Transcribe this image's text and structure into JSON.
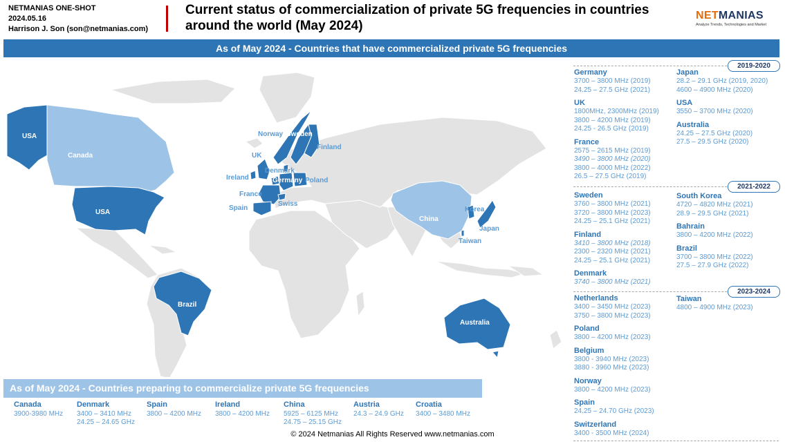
{
  "header": {
    "line1": "NETMANIAS ONE-SHOT",
    "line2": "2024.05.16",
    "line3": "Harrison J. Son (son@netmanias.com)",
    "title": "Current status of commercialization of private 5G frequencies in countries around the world (May 2024)",
    "logo_part1": "NET",
    "logo_part2": "MANIAS",
    "logo_tagline": "Analyze Trends, Technologies and Market",
    "accent_color": "#c00000",
    "logo_color": "#e46c0a"
  },
  "banner_text": "As of May 2024 - Countries that have commercialized private 5G frequencies",
  "colors": {
    "commercialized": "#2e75b6",
    "preparing": "#9dc3e6",
    "land": "#e3e3e3"
  },
  "map_labels": [
    "USA",
    "Canada",
    "USA",
    "Norway",
    "Sweden",
    "Finland",
    "UK",
    "Denmark",
    "Ireland",
    "Germany",
    "Poland",
    "France",
    "Swiss",
    "Spain",
    "China",
    "Korea",
    "Japan",
    "Taiwan",
    "Brazil",
    "Australia"
  ],
  "preparing": {
    "banner": "As of May 2024 - Countries preparing to commercialize private 5G frequencies",
    "countries": [
      {
        "name": "Canada",
        "freqs": [
          "3900-3980 MHz"
        ]
      },
      {
        "name": "Denmark",
        "freqs": [
          "3400 – 3410 MHz",
          "24.25 – 24.65 GHz"
        ]
      },
      {
        "name": "Spain",
        "freqs": [
          "3800 – 4200 MHz"
        ]
      },
      {
        "name": "Ireland",
        "freqs": [
          "3800 – 4200 MHz"
        ]
      },
      {
        "name": "China",
        "freqs": [
          "5925 – 6125 MHz",
          "24.75 – 25.15 GHz"
        ]
      },
      {
        "name": "Austria",
        "freqs": [
          "24.3 – 24.9 GHz"
        ]
      },
      {
        "name": "Croatia",
        "freqs": [
          "3400 – 3480 MHz"
        ]
      }
    ]
  },
  "periods": [
    "2019-2020",
    "2021-2022",
    "2023-2024"
  ],
  "right_left_col": [
    {
      "name": "Germany",
      "freqs": [
        {
          "t": "3700 – 3800 MHz (2019)"
        },
        {
          "t": "24.25 – 27.5 GHz (2021)"
        }
      ]
    },
    {
      "name": "UK",
      "freqs": [
        {
          "t": "1800MHz, 2300MHz (2019)"
        },
        {
          "t": "3800 – 4200 MHz (2019)"
        },
        {
          "t": "24.25 - 26.5 GHz (2019)"
        }
      ]
    },
    {
      "name": "France",
      "freqs": [
        {
          "t": "2575 – 2615 MHz (2019)"
        },
        {
          "t": "3490 – 3800 MHz (2020)",
          "i": true
        },
        {
          "t": "3800 – 4000 MHz (2022)"
        },
        {
          "t": "26.5 – 27.5 GHz (2019)"
        }
      ]
    },
    {
      "name": "Sweden",
      "freqs": [
        {
          "t": "3760 – 3800 MHz (2021)"
        },
        {
          "t": "3720 – 3800 MHz (2023)"
        },
        {
          "t": "24.25 – 25.1 GHz (2021)"
        }
      ]
    },
    {
      "name": "Finland",
      "freqs": [
        {
          "t": "3410 – 3800 MHz (2018)",
          "i": true
        },
        {
          "t": "2300 – 2320 MHz (2021)"
        },
        {
          "t": "24.25 – 25.1 GHz (2021)"
        }
      ]
    },
    {
      "name": "Denmark",
      "freqs": [
        {
          "t": "3740 – 3800 MHz (2021)",
          "i": true
        }
      ]
    },
    {
      "name": "Netherlands",
      "freqs": [
        {
          "t": "3400 – 3450 MHz (2023)"
        },
        {
          "t": "3750 – 3800 MHz (2023)"
        }
      ]
    },
    {
      "name": "Poland",
      "freqs": [
        {
          "t": "3800 – 4200 MHz (2023)"
        }
      ]
    },
    {
      "name": "Belgium",
      "freqs": [
        {
          "t": "3800 - 3940 MHz (2023)"
        },
        {
          "t": "3880 - 3960 MHz (2023)"
        }
      ]
    },
    {
      "name": "Norway",
      "freqs": [
        {
          "t": "3800 – 4200 MHz (2023)"
        }
      ]
    },
    {
      "name": "Spain",
      "freqs": [
        {
          "t": "24.25 – 24.70 GHz (2023)"
        }
      ]
    },
    {
      "name": "Switzerland",
      "freqs": [
        {
          "t": "3400 - 3500 MHz (2024)"
        }
      ]
    }
  ],
  "right_right_col": [
    {
      "name": "Japan",
      "freqs": [
        {
          "t": "28.2 – 29.1 GHz (2019, 2020)"
        },
        {
          "t": "4600 – 4900 MHz (2020)"
        }
      ]
    },
    {
      "name": "USA",
      "freqs": [
        {
          "t": "3550 – 3700 MHz (2020)"
        }
      ]
    },
    {
      "name": "Australia",
      "freqs": [
        {
          "t": "24.25 – 27.5 GHz (2020)"
        },
        {
          "t": "27.5 – 29.5 GHz (2020)"
        }
      ]
    },
    {
      "name": "South Korea",
      "freqs": [
        {
          "t": "4720 – 4820 MHz (2021)"
        },
        {
          "t": "28.9 – 29.5 GHz (2021)"
        }
      ]
    },
    {
      "name": "Bahrain",
      "freqs": [
        {
          "t": "3800 – 4200 MHz (2022)"
        }
      ]
    },
    {
      "name": "Brazil",
      "freqs": [
        {
          "t": "3700 – 3800 MHz (2022)"
        },
        {
          "t": "27.5 – 27.9 GHz (2022)"
        }
      ]
    },
    {
      "name": "Taiwan",
      "freqs": [
        {
          "t": "4800 – 4900 MHz (2023)"
        }
      ]
    }
  ],
  "footer": "© 2024 Netmanias All Rights Reserved www.netmanias.com"
}
